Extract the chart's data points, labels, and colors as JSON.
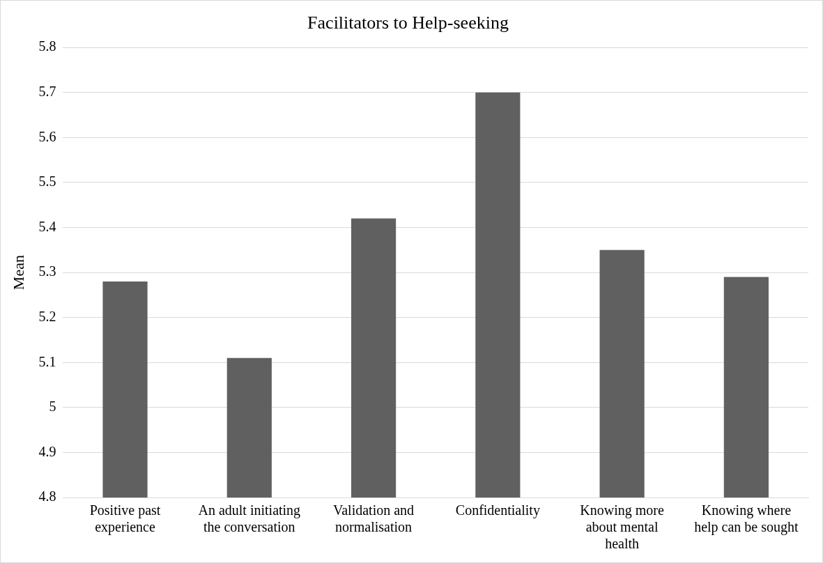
{
  "chart_data": {
    "type": "bar",
    "title": "Facilitators to Help-seeking",
    "ylabel": "Mean",
    "categories": [
      "Positive past experience",
      "An adult initiating the conversation",
      "Validation and normalisation",
      "Confidentiality",
      "Knowing more about mental health",
      "Knowing where help can be sought"
    ],
    "values": [
      5.28,
      5.11,
      5.42,
      5.7,
      5.35,
      5.29
    ],
    "color": "#606060",
    "ylim": [
      4.8,
      5.8
    ],
    "yticks": [
      4.8,
      4.9,
      5,
      5.1,
      5.2,
      5.3,
      5.4,
      5.5,
      5.6,
      5.7,
      5.8
    ],
    "grid": "y",
    "legend": false
  }
}
